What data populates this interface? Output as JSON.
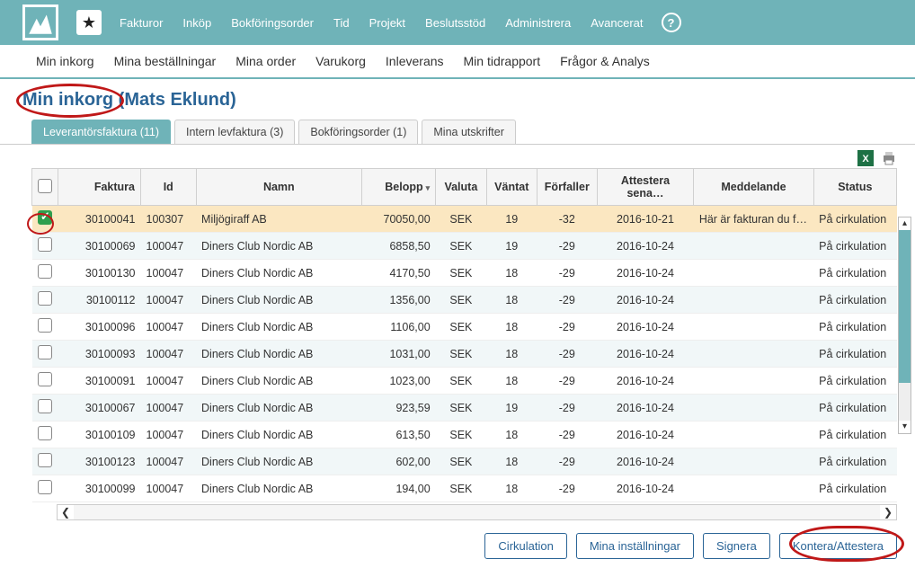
{
  "colors": {
    "topbar": "#6fb3b8",
    "accent_link": "#2a6496",
    "highlight_red": "#c01818",
    "selected_row": "#fbe7c1",
    "alt_row": "#f1f7f8"
  },
  "topnav": {
    "items": [
      "Fakturor",
      "Inköp",
      "Bokföringsorder",
      "Tid",
      "Projekt",
      "Beslutsstöd",
      "Administrera",
      "Avancerat"
    ]
  },
  "subnav": {
    "items": [
      "Min inkorg",
      "Mina beställningar",
      "Mina order",
      "Varukorg",
      "Inleverans",
      "Min tidrapport",
      "Frågor & Analys"
    ]
  },
  "page_title_strong": "Min inkorg",
  "page_title_rest": " (Mats Eklund)",
  "tabs": [
    {
      "label": "Leverantörsfaktura (11)",
      "active": true
    },
    {
      "label": "Intern levfaktura (3)",
      "active": false
    },
    {
      "label": "Bokföringsorder (1)",
      "active": false
    },
    {
      "label": "Mina utskrifter",
      "active": false
    }
  ],
  "table": {
    "columns": [
      "",
      "Faktura",
      "Id",
      "Namn",
      "Belopp",
      "Valuta",
      "Väntat",
      "Förfaller",
      "Attestera sena…",
      "Meddelande",
      "Status"
    ],
    "sort_column": "Belopp",
    "sort_dir": "desc",
    "rows": [
      {
        "checked": true,
        "faktura": "30100041",
        "id": "100307",
        "namn": "Miljögiraff AB",
        "belopp": "70050,00",
        "valuta": "SEK",
        "vantat": "19",
        "forfaller": "-32",
        "attestera": "2016-10-21",
        "meddelande": "Här är fakturan du frå…",
        "status": "På cirkulation"
      },
      {
        "checked": false,
        "faktura": "30100069",
        "id": "100047",
        "namn": "Diners Club Nordic AB",
        "belopp": "6858,50",
        "valuta": "SEK",
        "vantat": "19",
        "forfaller": "-29",
        "attestera": "2016-10-24",
        "meddelande": "",
        "status": "På cirkulation"
      },
      {
        "checked": false,
        "faktura": "30100130",
        "id": "100047",
        "namn": "Diners Club Nordic AB",
        "belopp": "4170,50",
        "valuta": "SEK",
        "vantat": "18",
        "forfaller": "-29",
        "attestera": "2016-10-24",
        "meddelande": "",
        "status": "På cirkulation"
      },
      {
        "checked": false,
        "faktura": "30100112",
        "id": "100047",
        "namn": "Diners Club Nordic AB",
        "belopp": "1356,00",
        "valuta": "SEK",
        "vantat": "18",
        "forfaller": "-29",
        "attestera": "2016-10-24",
        "meddelande": "",
        "status": "På cirkulation"
      },
      {
        "checked": false,
        "faktura": "30100096",
        "id": "100047",
        "namn": "Diners Club Nordic AB",
        "belopp": "1106,00",
        "valuta": "SEK",
        "vantat": "18",
        "forfaller": "-29",
        "attestera": "2016-10-24",
        "meddelande": "",
        "status": "På cirkulation"
      },
      {
        "checked": false,
        "faktura": "30100093",
        "id": "100047",
        "namn": "Diners Club Nordic AB",
        "belopp": "1031,00",
        "valuta": "SEK",
        "vantat": "18",
        "forfaller": "-29",
        "attestera": "2016-10-24",
        "meddelande": "",
        "status": "På cirkulation"
      },
      {
        "checked": false,
        "faktura": "30100091",
        "id": "100047",
        "namn": "Diners Club Nordic AB",
        "belopp": "1023,00",
        "valuta": "SEK",
        "vantat": "18",
        "forfaller": "-29",
        "attestera": "2016-10-24",
        "meddelande": "",
        "status": "På cirkulation"
      },
      {
        "checked": false,
        "faktura": "30100067",
        "id": "100047",
        "namn": "Diners Club Nordic AB",
        "belopp": "923,59",
        "valuta": "SEK",
        "vantat": "19",
        "forfaller": "-29",
        "attestera": "2016-10-24",
        "meddelande": "",
        "status": "På cirkulation"
      },
      {
        "checked": false,
        "faktura": "30100109",
        "id": "100047",
        "namn": "Diners Club Nordic AB",
        "belopp": "613,50",
        "valuta": "SEK",
        "vantat": "18",
        "forfaller": "-29",
        "attestera": "2016-10-24",
        "meddelande": "",
        "status": "På cirkulation"
      },
      {
        "checked": false,
        "faktura": "30100123",
        "id": "100047",
        "namn": "Diners Club Nordic AB",
        "belopp": "602,00",
        "valuta": "SEK",
        "vantat": "18",
        "forfaller": "-29",
        "attestera": "2016-10-24",
        "meddelande": "",
        "status": "På cirkulation"
      },
      {
        "checked": false,
        "faktura": "30100099",
        "id": "100047",
        "namn": "Diners Club Nordic AB",
        "belopp": "194,00",
        "valuta": "SEK",
        "vantat": "18",
        "forfaller": "-29",
        "attestera": "2016-10-24",
        "meddelande": "",
        "status": "På cirkulation"
      }
    ]
  },
  "footer_buttons": [
    "Cirkulation",
    "Mina inställningar",
    "Signera",
    "Kontera/Attestera"
  ]
}
